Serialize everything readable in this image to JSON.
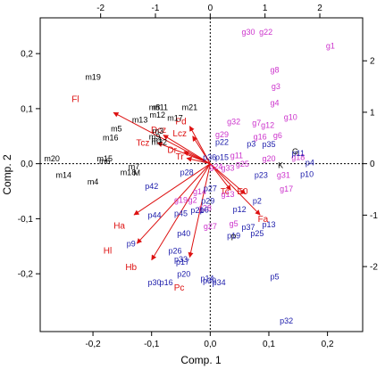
{
  "chart_data": {
    "type": "scatter",
    "subtype": "biplot",
    "title": "",
    "xlabel": "Comp. 1",
    "ylabel": "Comp. 2",
    "xlim": [
      -0.29,
      0.26
    ],
    "ylim": [
      -0.305,
      0.265
    ],
    "xticks": [
      -0.2,
      -0.1,
      0.0,
      0.1,
      0.2
    ],
    "yticks": [
      -0.2,
      -0.1,
      0.0,
      0.1,
      0.2
    ],
    "xtick_labels": [
      "-0,2",
      "-0,1",
      "0,0",
      "0,1",
      "0,2"
    ],
    "ytick_labels": [
      "-0,2",
      "-0,1",
      "0,0",
      "0,1",
      "0,2"
    ],
    "top_axis": {
      "scale": 10.7,
      "ticks": [
        -2,
        -1,
        0,
        1,
        2
      ],
      "tick_labels": [
        "-2",
        "-1",
        "0",
        "1",
        "2"
      ]
    },
    "right_axis": {
      "scale": 10.7,
      "ticks": [
        -2,
        -1,
        0,
        1,
        2
      ],
      "tick_labels": [
        "-2",
        "-1",
        "0",
        "1",
        "2"
      ]
    },
    "zero_lines": true,
    "colors": {
      "black": "#000000",
      "magenta": "#cc33cc",
      "blue": "#1a1aaa",
      "red": "#dd1111",
      "loadings": "#dd1111"
    },
    "series": [
      {
        "color": "black",
        "points": [
          {
            "label": "m19",
            "x": -0.2,
            "y": 0.158
          },
          {
            "label": "m11",
            "x": -0.085,
            "y": 0.103
          },
          {
            "label": "m8",
            "x": -0.095,
            "y": 0.103
          },
          {
            "label": "m21",
            "x": -0.035,
            "y": 0.103
          },
          {
            "label": "m12",
            "x": -0.09,
            "y": 0.089
          },
          {
            "label": "m17",
            "x": -0.06,
            "y": 0.084
          },
          {
            "label": "m13",
            "x": -0.12,
            "y": 0.08
          },
          {
            "label": "m5",
            "x": -0.16,
            "y": 0.064
          },
          {
            "label": "m3",
            "x": -0.089,
            "y": 0.06
          },
          {
            "label": "m16",
            "x": -0.17,
            "y": 0.048
          },
          {
            "label": "m9",
            "x": -0.095,
            "y": 0.05
          },
          {
            "label": "m1",
            "x": -0.091,
            "y": 0.044
          },
          {
            "label": "m22",
            "x": -0.087,
            "y": 0.04
          },
          {
            "label": "m20",
            "x": -0.27,
            "y": 0.01
          },
          {
            "label": "m15",
            "x": -0.18,
            "y": 0.01
          },
          {
            "label": "m6",
            "x": -0.18,
            "y": 0.005
          },
          {
            "label": "m7",
            "x": -0.13,
            "y": -0.005
          },
          {
            "label": "m18",
            "x": -0.14,
            "y": -0.015
          },
          {
            "label": "M",
            "x": -0.125,
            "y": -0.016
          },
          {
            "label": "m14",
            "x": -0.25,
            "y": -0.02
          },
          {
            "label": "m4",
            "x": -0.2,
            "y": -0.032
          },
          {
            "label": "G",
            "x": 0.145,
            "y": 0.023
          },
          {
            "label": "K",
            "x": 0.12,
            "y": -0.002
          },
          {
            "label": "P",
            "x": 0.04,
            "y": -0.133
          }
        ]
      },
      {
        "color": "magenta",
        "points": [
          {
            "label": "g30",
            "x": 0.065,
            "y": 0.24
          },
          {
            "label": "g22",
            "x": 0.095,
            "y": 0.24
          },
          {
            "label": "g1",
            "x": 0.205,
            "y": 0.215
          },
          {
            "label": "g8",
            "x": 0.11,
            "y": 0.171
          },
          {
            "label": "g3",
            "x": 0.112,
            "y": 0.141
          },
          {
            "label": "g4",
            "x": 0.11,
            "y": 0.111
          },
          {
            "label": "g10",
            "x": 0.137,
            "y": 0.085
          },
          {
            "label": "g32",
            "x": 0.04,
            "y": 0.077
          },
          {
            "label": "g7",
            "x": 0.079,
            "y": 0.075
          },
          {
            "label": "g12",
            "x": 0.098,
            "y": 0.071
          },
          {
            "label": "g29",
            "x": 0.02,
            "y": 0.054
          },
          {
            "label": "g6",
            "x": 0.115,
            "y": 0.052
          },
          {
            "label": "g16",
            "x": 0.085,
            "y": 0.05
          },
          {
            "label": "g18",
            "x": 0.15,
            "y": 0.012
          },
          {
            "label": "g11",
            "x": 0.045,
            "y": 0.016
          },
          {
            "label": "g20",
            "x": 0.1,
            "y": 0.01
          },
          {
            "label": "g25",
            "x": 0.055,
            "y": 0.0
          },
          {
            "label": "g24",
            "x": 0.01,
            "y": -0.005
          },
          {
            "label": "g33",
            "x": 0.03,
            "y": -0.007
          },
          {
            "label": "g31",
            "x": 0.125,
            "y": -0.02
          },
          {
            "label": "g17",
            "x": 0.13,
            "y": -0.045
          },
          {
            "label": "g14",
            "x": -0.018,
            "y": -0.05
          },
          {
            "label": "g13",
            "x": 0.03,
            "y": -0.055
          },
          {
            "label": "g19",
            "x": -0.05,
            "y": -0.065
          },
          {
            "label": "g2",
            "x": -0.03,
            "y": -0.065
          },
          {
            "label": "g28",
            "x": -0.009,
            "y": -0.08
          },
          {
            "label": "g5",
            "x": 0.04,
            "y": -0.108
          },
          {
            "label": "g27",
            "x": 0.0,
            "y": -0.113
          }
        ]
      },
      {
        "color": "blue",
        "points": [
          {
            "label": "p22",
            "x": 0.02,
            "y": 0.04
          },
          {
            "label": "p3",
            "x": 0.07,
            "y": 0.037
          },
          {
            "label": "p35",
            "x": 0.1,
            "y": 0.036
          },
          {
            "label": "p11",
            "x": 0.15,
            "y": 0.02
          },
          {
            "label": "p4",
            "x": 0.17,
            "y": 0.003
          },
          {
            "label": "p10",
            "x": 0.165,
            "y": -0.018
          },
          {
            "label": "p23",
            "x": 0.087,
            "y": -0.02
          },
          {
            "label": "p36",
            "x": -0.001,
            "y": 0.012
          },
          {
            "label": "p15",
            "x": 0.02,
            "y": 0.012
          },
          {
            "label": "p28",
            "x": -0.04,
            "y": -0.015
          },
          {
            "label": "p42",
            "x": -0.1,
            "y": -0.04
          },
          {
            "label": "p27",
            "x": 0.0,
            "y": -0.044
          },
          {
            "label": "p2",
            "x": 0.08,
            "y": -0.067
          },
          {
            "label": "p29",
            "x": -0.004,
            "y": -0.067
          },
          {
            "label": "p12",
            "x": 0.05,
            "y": -0.082
          },
          {
            "label": "p6",
            "x": -0.01,
            "y": -0.083
          },
          {
            "label": "p21",
            "x": -0.022,
            "y": -0.084
          },
          {
            "label": "p44",
            "x": -0.095,
            "y": -0.093
          },
          {
            "label": "p45",
            "x": -0.05,
            "y": -0.09
          },
          {
            "label": "p13",
            "x": 0.1,
            "y": -0.11
          },
          {
            "label": "p37",
            "x": 0.065,
            "y": -0.115
          },
          {
            "label": "p40",
            "x": -0.045,
            "y": -0.126
          },
          {
            "label": "p25",
            "x": 0.08,
            "y": -0.126
          },
          {
            "label": "p19",
            "x": 0.04,
            "y": -0.13
          },
          {
            "label": "p9",
            "x": -0.135,
            "y": -0.145
          },
          {
            "label": "p26",
            "x": -0.06,
            "y": -0.158
          },
          {
            "label": "p33",
            "x": -0.05,
            "y": -0.173
          },
          {
            "label": "p17",
            "x": -0.047,
            "y": -0.178
          },
          {
            "label": "p20",
            "x": -0.045,
            "y": -0.2
          },
          {
            "label": "p30",
            "x": -0.095,
            "y": -0.215
          },
          {
            "label": "p16",
            "x": -0.075,
            "y": -0.215
          },
          {
            "label": "p39",
            "x": -0.001,
            "y": -0.212
          },
          {
            "label": "p14",
            "x": -0.005,
            "y": -0.208
          },
          {
            "label": "p34",
            "x": 0.015,
            "y": -0.215
          },
          {
            "label": "p5",
            "x": 0.11,
            "y": -0.205
          },
          {
            "label": "p32",
            "x": 0.13,
            "y": -0.285
          }
        ]
      }
    ],
    "loadings": [
      {
        "label": "Fl",
        "x": -0.165,
        "y": 0.093,
        "label_x": -0.23,
        "label_y": 0.118
      },
      {
        "label": "Pd",
        "x": -0.035,
        "y": 0.068,
        "label_x": -0.05,
        "label_y": 0.077
      },
      {
        "label": "Dcz",
        "x": -0.08,
        "y": 0.052,
        "label_x": -0.088,
        "label_y": 0.062
      },
      {
        "label": "Lcz",
        "x": -0.03,
        "y": 0.05,
        "label_x": -0.052,
        "label_y": 0.055
      },
      {
        "label": "Tcz",
        "x": -0.09,
        "y": 0.038,
        "label_x": -0.115,
        "label_y": 0.038
      },
      {
        "label": "Dr",
        "x": -0.045,
        "y": 0.022,
        "label_x": -0.065,
        "label_y": 0.025
      },
      {
        "label": "Tr",
        "x": -0.04,
        "y": 0.01,
        "label_x": -0.052,
        "label_y": 0.013
      },
      {
        "label": "E0",
        "x": 0.06,
        "y": -0.055,
        "label_x": 0.055,
        "label_y": -0.05
      },
      {
        "label": "Tc",
        "x": 0.035,
        "y": -0.048,
        "label_x": 0.025,
        "label_y": -0.05
      },
      {
        "label": "Fa",
        "x": 0.085,
        "y": -0.093,
        "label_x": 0.09,
        "label_y": -0.1
      },
      {
        "label": "Ha",
        "x": -0.13,
        "y": -0.093,
        "label_x": -0.155,
        "label_y": -0.112
      },
      {
        "label": "Hl",
        "x": -0.125,
        "y": -0.145,
        "label_x": -0.175,
        "label_y": -0.158
      },
      {
        "label": "Hb",
        "x": -0.1,
        "y": -0.175,
        "label_x": -0.135,
        "label_y": -0.188
      },
      {
        "label": "Pc",
        "x": -0.035,
        "y": -0.17,
        "label_x": -0.053,
        "label_y": -0.225
      }
    ]
  }
}
